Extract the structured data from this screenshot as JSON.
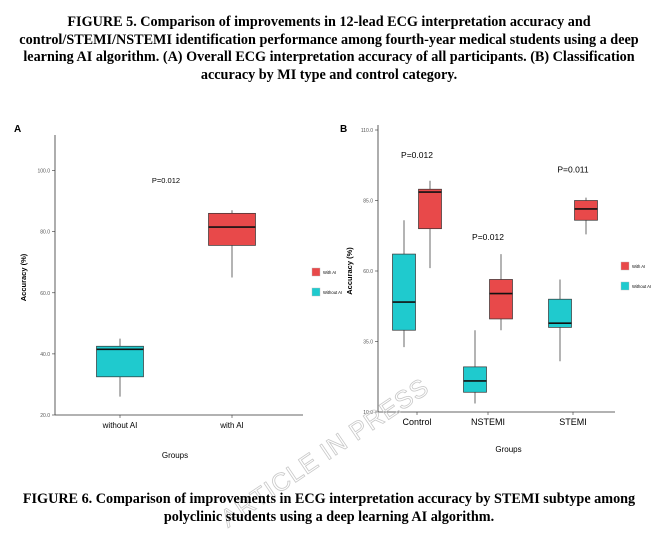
{
  "figure5_caption": "FIGURE 5. Comparison of improvements in 12-lead ECG interpretation accuracy and control/STEMI/NSTEMI identification performance among fourth-year medical students using a deep learning AI algorithm. (A) Overall ECG interpretation accuracy of all participants. (B) Classification accuracy by MI type and control category.",
  "figure6_caption": "FIGURE 6. Comparison of improvements in ECG interpretation accuracy by STEMI subtype among polyclinic students using a deep learning AI algorithm.",
  "watermark": "ARTICLE IN PRESS",
  "colors": {
    "with_ai": "#E8494A",
    "without_ai": "#1FCACE"
  },
  "chart_data": [
    {
      "panel_label": "A",
      "type": "boxplot",
      "xlabel": "Groups",
      "ylabel": "Accuracy (%)",
      "ylim": [
        20,
        110
      ],
      "yticks": [
        "20.0",
        "40.0",
        "60.0",
        "80.0",
        "100.0"
      ],
      "categories": [
        "without AI",
        "with AI"
      ],
      "annotations": [
        {
          "text": "P=0.012",
          "x": "between",
          "y": 96
        }
      ],
      "legend": {
        "placement": "right",
        "entries": [
          "With AI",
          "Without AI"
        ]
      },
      "boxes": [
        {
          "category": "without AI",
          "series": "Without AI",
          "min": 26,
          "q1": 32.5,
          "median": 41.5,
          "q3": 42.5,
          "max": 45
        },
        {
          "category": "with AI",
          "series": "With AI",
          "min": 65,
          "q1": 75.5,
          "median": 81.5,
          "q3": 86,
          "max": 87
        }
      ]
    },
    {
      "panel_label": "B",
      "type": "boxplot",
      "xlabel": "Groups",
      "ylabel": "Accuracy (%)",
      "ylim": [
        10,
        110
      ],
      "yticks": [
        "10.0",
        "35.0",
        "60.0",
        "85.0",
        "110.0"
      ],
      "categories": [
        "Control",
        "NSTEMI",
        "STEMI"
      ],
      "annotations": [
        {
          "text": "P=0.012",
          "category": "Control",
          "y": 100
        },
        {
          "text": "P=0.012",
          "category": "NSTEMI",
          "y": 71
        },
        {
          "text": "P=0.011",
          "category": "STEMI",
          "y": 95
        }
      ],
      "legend": {
        "placement": "right",
        "entries": [
          "With AI",
          "Without AI"
        ]
      },
      "boxes": [
        {
          "category": "Control",
          "series": "Without AI",
          "min": 33,
          "q1": 39,
          "median": 49,
          "q3": 66,
          "max": 78
        },
        {
          "category": "Control",
          "series": "With AI",
          "min": 61,
          "q1": 75,
          "median": 88,
          "q3": 89,
          "max": 92
        },
        {
          "category": "NSTEMI",
          "series": "Without AI",
          "min": 13,
          "q1": 17,
          "median": 21,
          "q3": 26,
          "max": 39
        },
        {
          "category": "NSTEMI",
          "series": "With AI",
          "min": 39,
          "q1": 43,
          "median": 52,
          "q3": 57,
          "max": 66
        },
        {
          "category": "STEMI",
          "series": "Without AI",
          "min": 28,
          "q1": 40,
          "median": 41.5,
          "q3": 50,
          "max": 57
        },
        {
          "category": "STEMI",
          "series": "With AI",
          "min": 73,
          "q1": 78,
          "median": 82,
          "q3": 85,
          "max": 86
        }
      ]
    }
  ]
}
